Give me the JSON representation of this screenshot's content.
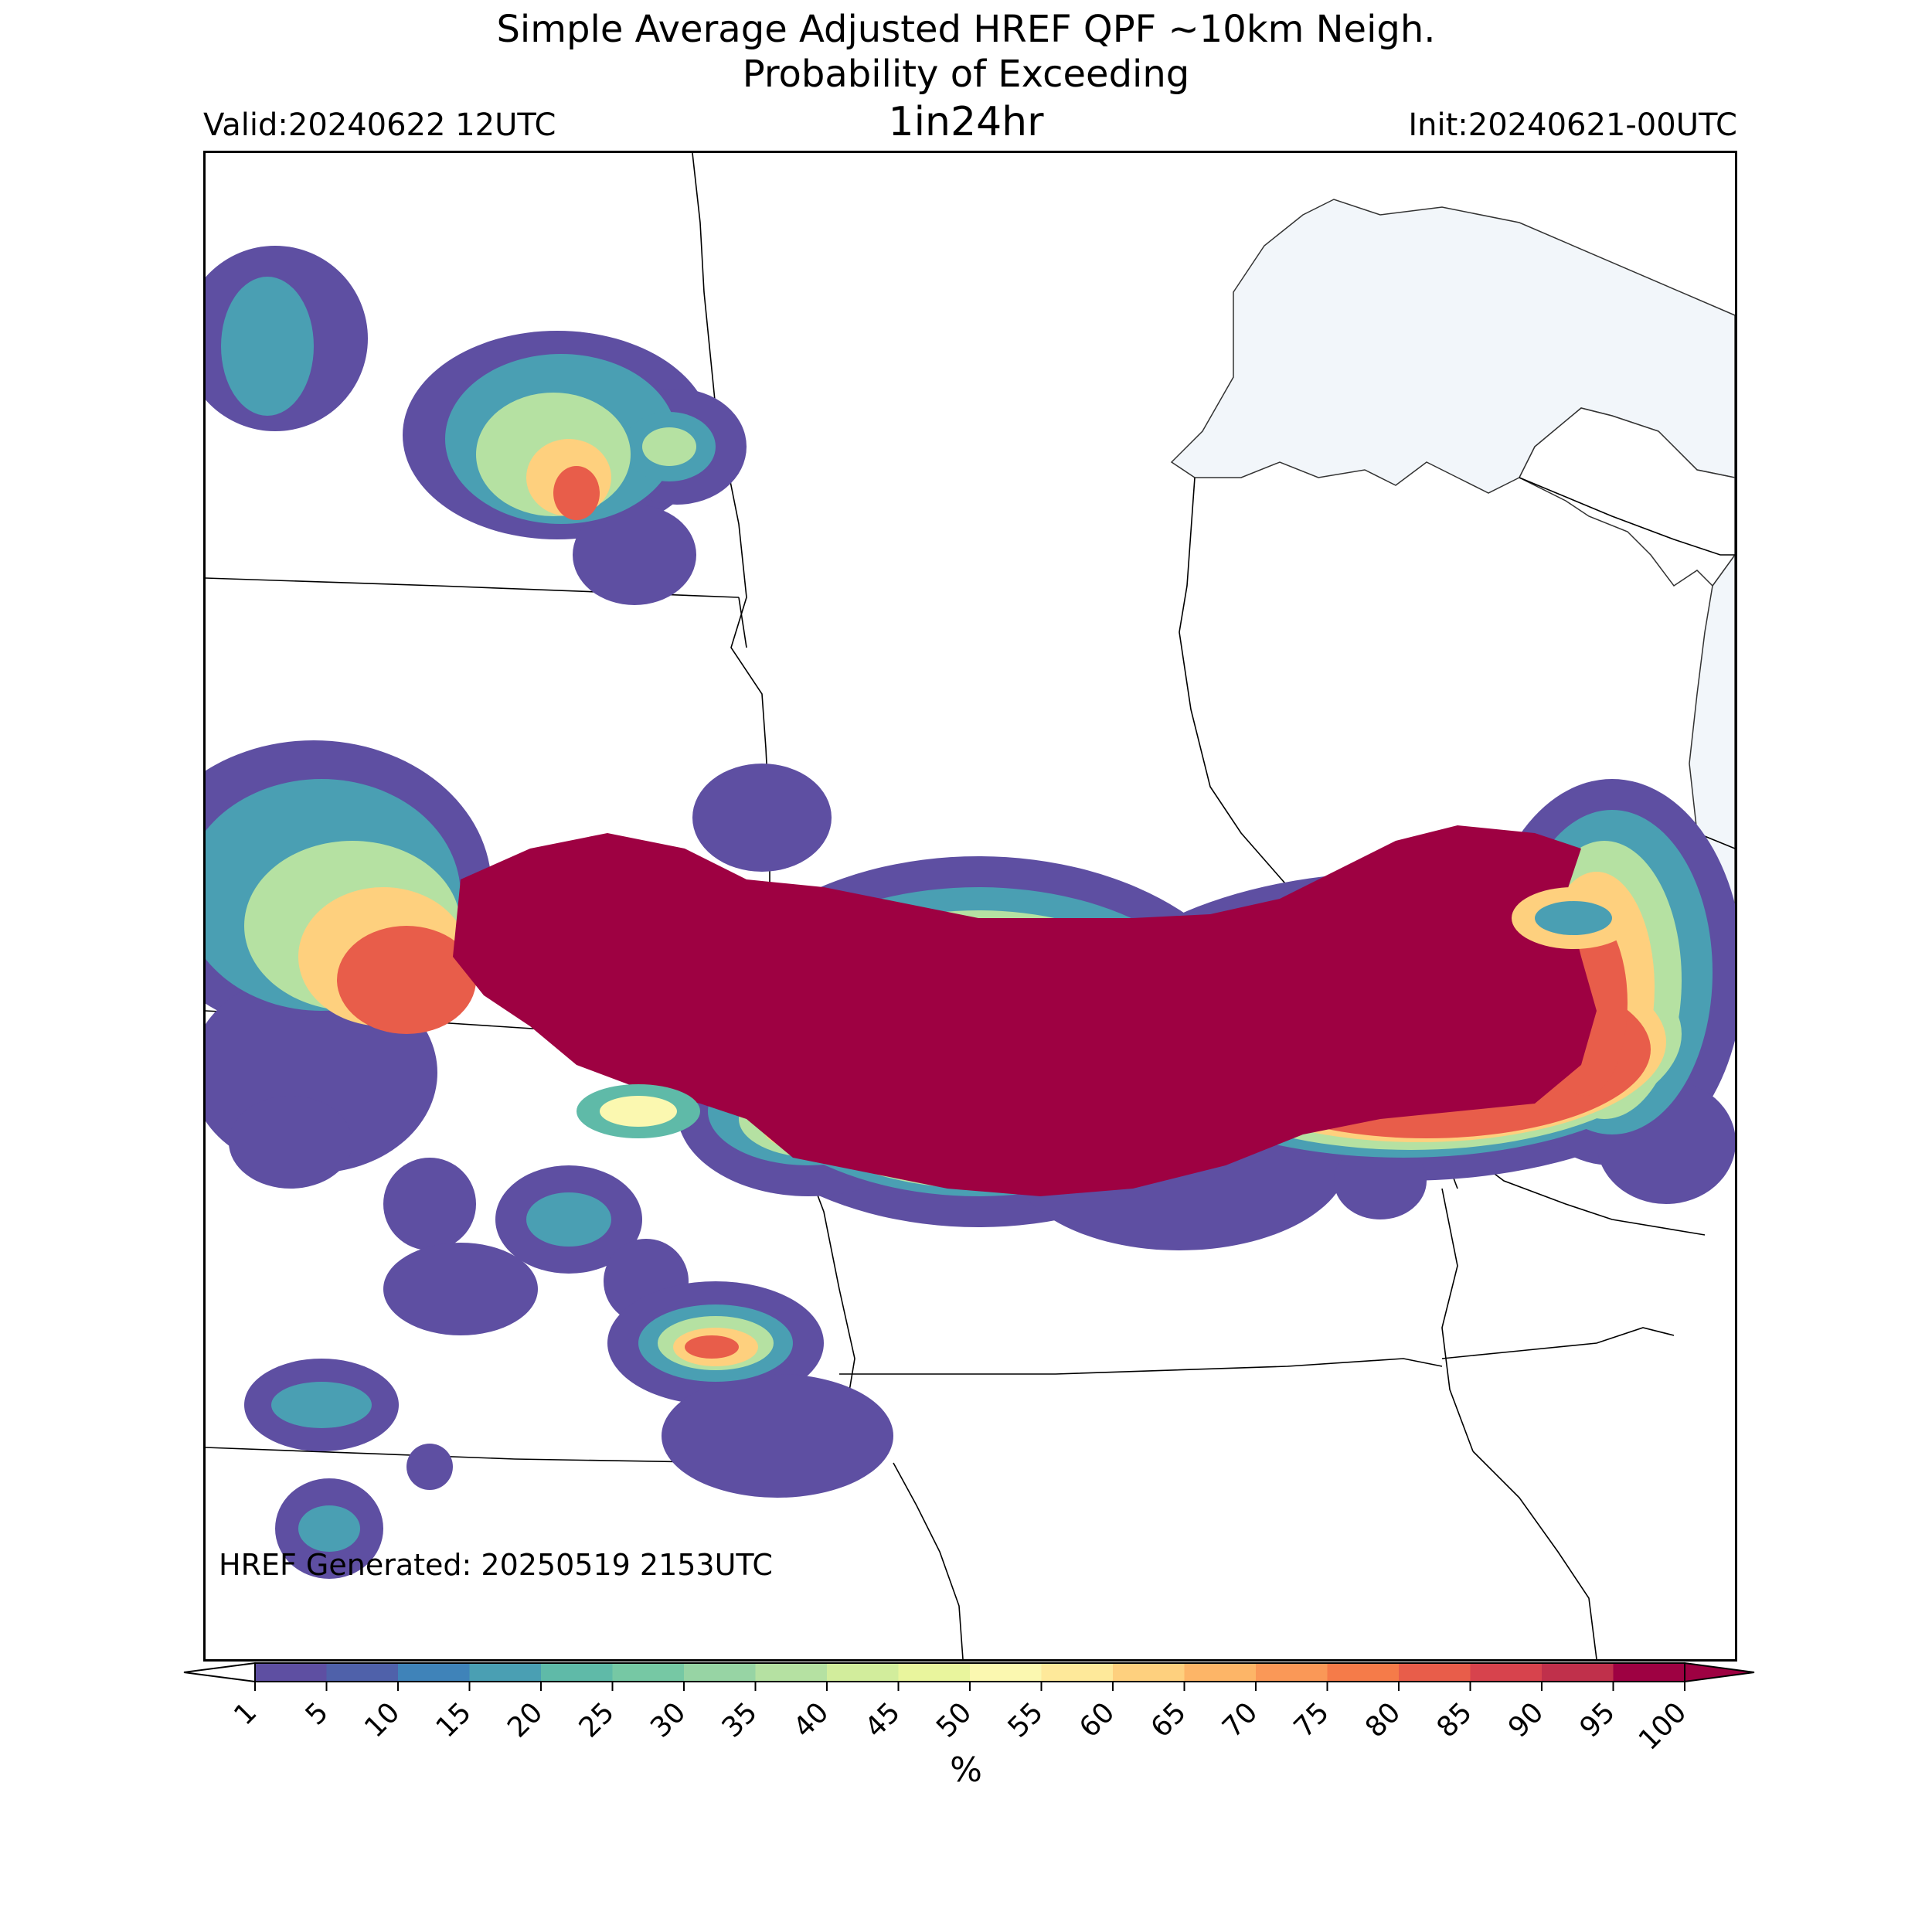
{
  "title": {
    "line1": "Simple Average Adjusted HREF QPF ~10km Neigh.",
    "line2": "Probability of Exceeding",
    "line3": "1in24hr"
  },
  "valid": "Valid:20240622 12UTC",
  "init": "Init:20240621-00UTC",
  "generated": "HREF Generated: 20250519 2153UTC",
  "colorbar": {
    "unit": "%",
    "levels": [
      "1",
      "5",
      "10",
      "15",
      "20",
      "25",
      "30",
      "35",
      "40",
      "45",
      "50",
      "55",
      "60",
      "65",
      "70",
      "75",
      "80",
      "85",
      "90",
      "95",
      "100"
    ],
    "colors": [
      "#5e4fa2",
      "#4f61aa",
      "#3f83b9",
      "#4a9fb3",
      "#5fbaa8",
      "#76c8a4",
      "#97d4a4",
      "#b5e1a2",
      "#d2ed9c",
      "#e9f59d",
      "#fbf8b0",
      "#fee99a",
      "#fed07e",
      "#fdb567",
      "#fa9857",
      "#f57b49",
      "#e85d4a",
      "#d7434d",
      "#c0304b",
      "#9e0142"
    ]
  },
  "map_data": {
    "variable": "Probability of exceeding 1 in / 24 hr QPF",
    "units": "%",
    "max_probability": 100,
    "features": [
      "precipitation-probability-field",
      "state-borders",
      "great-lakes-water"
    ]
  }
}
